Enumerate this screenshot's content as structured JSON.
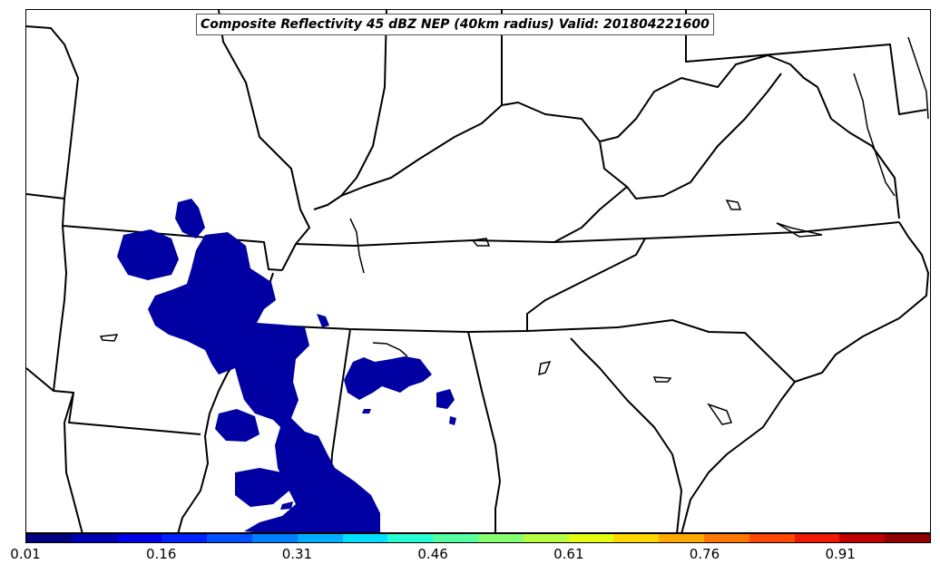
{
  "map": {
    "title": "Composite Reflectivity 45 dBZ NEP (40km radius) Valid: 201804221600",
    "field_color": "#0000a3"
  },
  "colorbar": {
    "colors": [
      "#000080",
      "#0000b3",
      "#0000e6",
      "#0020ff",
      "#0050ff",
      "#0080ff",
      "#00b0ff",
      "#00e0ff",
      "#26ffd1",
      "#56ffa1",
      "#86ff71",
      "#b6ff41",
      "#e6ff11",
      "#ffd800",
      "#ffa800",
      "#ff7800",
      "#ff4800",
      "#f01800",
      "#c00000",
      "#900000"
    ],
    "tick_labels": [
      "0.01",
      "0.16",
      "0.31",
      "0.46",
      "0.61",
      "0.76",
      "0.91"
    ]
  }
}
